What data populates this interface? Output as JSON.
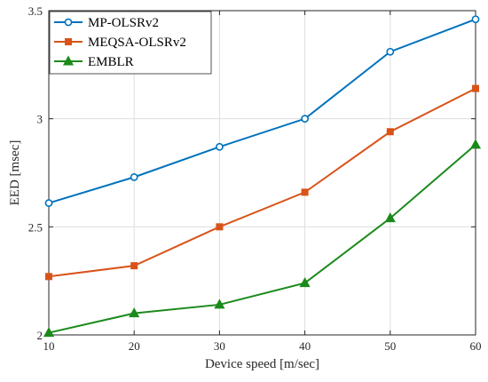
{
  "chart_data": {
    "type": "line",
    "title": "",
    "xlabel": "Device speed [m/sec]",
    "ylabel": "EED [msec]",
    "x": [
      10,
      20,
      30,
      40,
      50,
      60
    ],
    "xlim": [
      10,
      60
    ],
    "ylim": [
      2,
      3.5
    ],
    "xticks": [
      10,
      20,
      30,
      40,
      50,
      60
    ],
    "yticks": [
      2,
      2.5,
      3,
      3.5
    ],
    "xtick_labels": [
      "10",
      "20",
      "30",
      "40",
      "50",
      "60"
    ],
    "ytick_labels": [
      "2",
      "2.5",
      "3",
      "3.5"
    ],
    "grid": true,
    "legend_position": "top-left",
    "series": [
      {
        "name": "MP-OLSRv2",
        "values": [
          2.61,
          2.73,
          2.87,
          3.0,
          3.31,
          3.46
        ],
        "color": "#0072BD",
        "marker": "circle"
      },
      {
        "name": "MEQSA-OLSRv2",
        "values": [
          2.27,
          2.32,
          2.5,
          2.66,
          2.94,
          3.14
        ],
        "color": "#D95319",
        "marker": "square"
      },
      {
        "name": "EMBLR",
        "values": [
          2.01,
          2.1,
          2.14,
          2.24,
          2.54,
          2.88
        ],
        "color": "#1B8A1B",
        "marker": "triangle"
      }
    ]
  }
}
